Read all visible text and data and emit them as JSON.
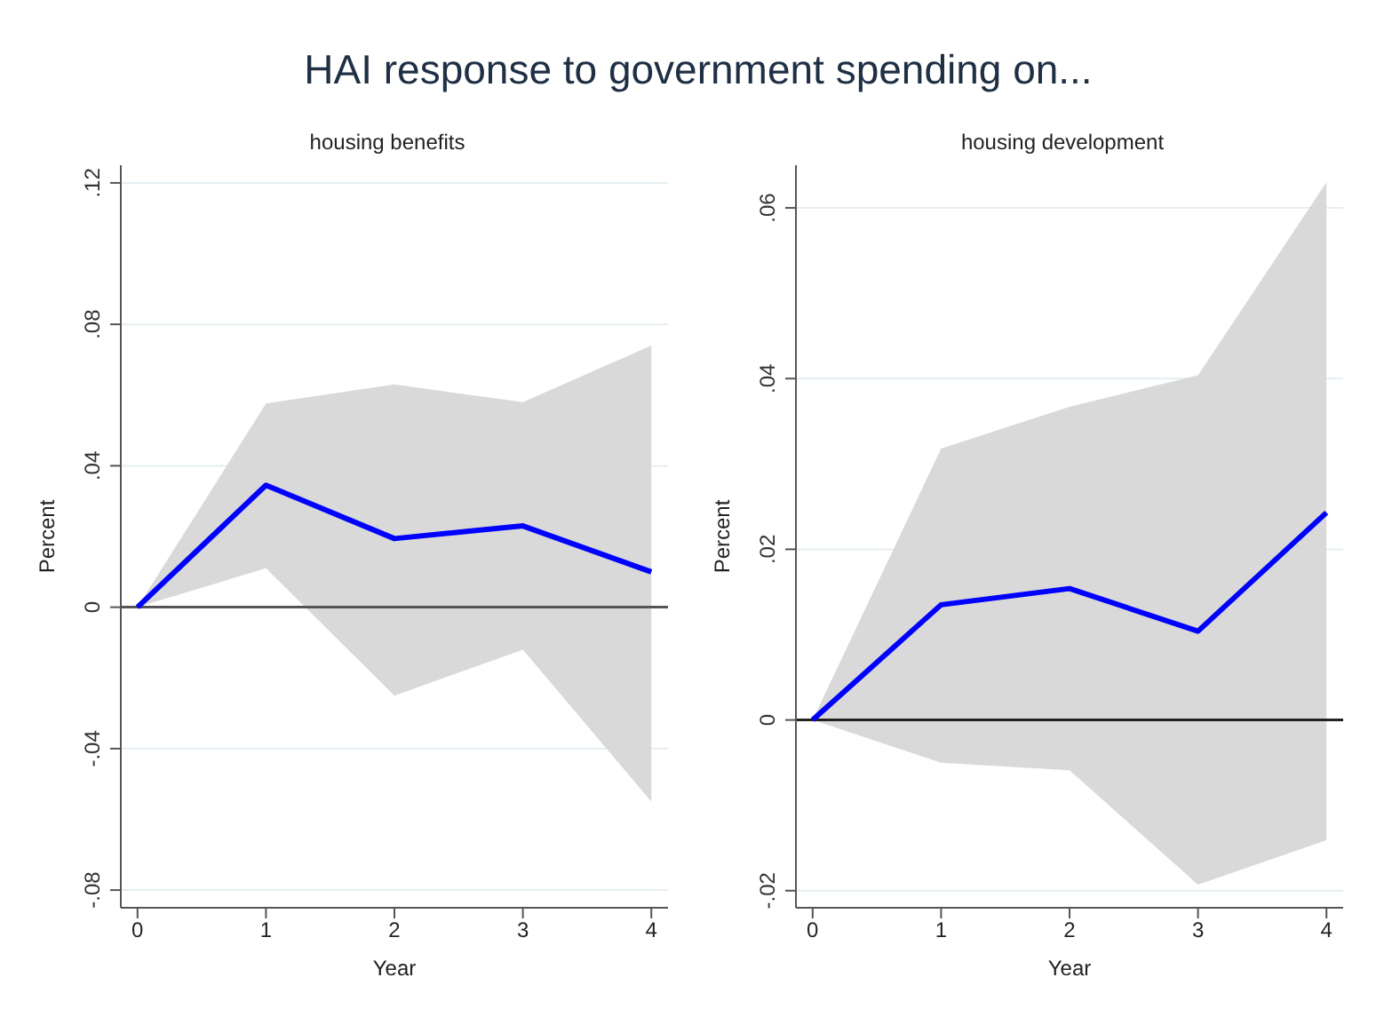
{
  "chart_data": [
    {
      "type": "line",
      "title": "HAI response to government spending on...",
      "subtitle": "housing benefits",
      "xlabel": "Year",
      "ylabel": "Percent",
      "x": [
        0,
        1,
        2,
        3,
        4
      ],
      "xlim": [
        -0.13,
        4.13
      ],
      "xticks": [
        0,
        1,
        2,
        3,
        4
      ],
      "ylim": [
        -0.085,
        0.125
      ],
      "yticks": [
        {
          "value": -0.08,
          "label": "-.08"
        },
        {
          "value": -0.04,
          "label": "-.04"
        },
        0,
        {
          "value": 0.04,
          "label": ".04"
        },
        {
          "value": 0.08,
          "label": ".08"
        },
        {
          "value": 0.12,
          "label": ".12"
        }
      ],
      "grid": "y",
      "marker": "none",
      "series": [
        {
          "color": "#0000ff",
          "values": [
            0,
            0.0345,
            0.0194,
            0.023,
            0.01
          ],
          "lower": [
            0,
            0.011,
            -0.025,
            -0.012,
            -0.055
          ],
          "upper": [
            0,
            0.0576,
            0.063,
            0.058,
            0.074
          ]
        }
      ],
      "ref_lines": [
        {
          "axis": "y",
          "value": 0,
          "color": "#555555"
        }
      ]
    },
    {
      "type": "line",
      "subtitle": "housing development",
      "xlabel": "Year",
      "ylabel": "Percent",
      "x": [
        0,
        1,
        2,
        3,
        4
      ],
      "xlim": [
        -0.13,
        4.13
      ],
      "xticks": [
        0,
        1,
        2,
        3,
        4
      ],
      "ylim": [
        -0.022,
        0.065
      ],
      "yticks": [
        {
          "value": -0.02,
          "label": "-.02"
        },
        0,
        {
          "value": 0.02,
          "label": ".02"
        },
        {
          "value": 0.04,
          "label": ".04"
        },
        {
          "value": 0.06,
          "label": ".06"
        }
      ],
      "grid": "y",
      "marker": "none",
      "series": [
        {
          "color": "#0000ff",
          "values": [
            0,
            0.0135,
            0.0154,
            0.0104,
            0.0243
          ],
          "lower": [
            0,
            -0.005,
            -0.0059,
            -0.0193,
            -0.0141
          ],
          "upper": [
            0,
            0.0318,
            0.0367,
            0.0404,
            0.063
          ]
        }
      ],
      "ref_lines": [
        {
          "axis": "y",
          "value": 0,
          "color": "#222222"
        }
      ]
    }
  ]
}
